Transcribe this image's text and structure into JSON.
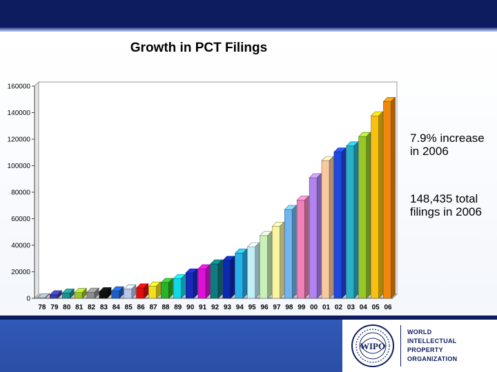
{
  "notes": {
    "increase": "7.9% increase in 2006",
    "total": "148,435 total filings in 2006"
  },
  "logo": {
    "line1": "World",
    "line2": "Intellectual",
    "line3": "Property",
    "line4": "Organization",
    "emblem_text": "WIPO"
  },
  "colors": {
    "header": "#0d1c5e",
    "footer_band": "#2f55b0"
  },
  "chart_data": {
    "type": "bar",
    "title": "Growth in PCT Filings",
    "xlabel": "",
    "ylabel": "",
    "ylim": [
      0,
      160000
    ],
    "y_ticks": [
      0,
      20000,
      40000,
      60000,
      80000,
      100000,
      120000,
      140000,
      160000
    ],
    "grid": false,
    "legend": "none",
    "categories": [
      "78",
      "79",
      "80",
      "81",
      "82",
      "83",
      "84",
      "85",
      "86",
      "87",
      "88",
      "89",
      "90",
      "91",
      "92",
      "93",
      "94",
      "95",
      "96",
      "97",
      "98",
      "99",
      "00",
      "01",
      "02",
      "03",
      "04",
      "05",
      "06"
    ],
    "values": [
      459,
      2625,
      3939,
      4336,
      4560,
      4980,
      5630,
      7100,
      7800,
      9200,
      11900,
      14870,
      19160,
      22250,
      25920,
      28580,
      34100,
      38900,
      47300,
      54400,
      67000,
      74000,
      90900,
      103900,
      110300,
      114900,
      122000,
      137600,
      148435
    ],
    "colors": [
      "#9aa4b2",
      "#3a3ea8",
      "#1f8f8f",
      "#9cc428",
      "#8c8c8c",
      "#111111",
      "#1f5fc4",
      "#b9c6e8",
      "#e01010",
      "#f0e020",
      "#28b428",
      "#10d8e8",
      "#1a2ab8",
      "#e010d8",
      "#0f7a80",
      "#0c2ab0",
      "#28b0e8",
      "#c4eef8",
      "#c8f0b8",
      "#f8f4a0",
      "#70b4f0",
      "#f080b8",
      "#b084f0",
      "#f8c8a0",
      "#2048e0",
      "#28b0c8",
      "#98c828",
      "#f8c010",
      "#f08810"
    ]
  }
}
